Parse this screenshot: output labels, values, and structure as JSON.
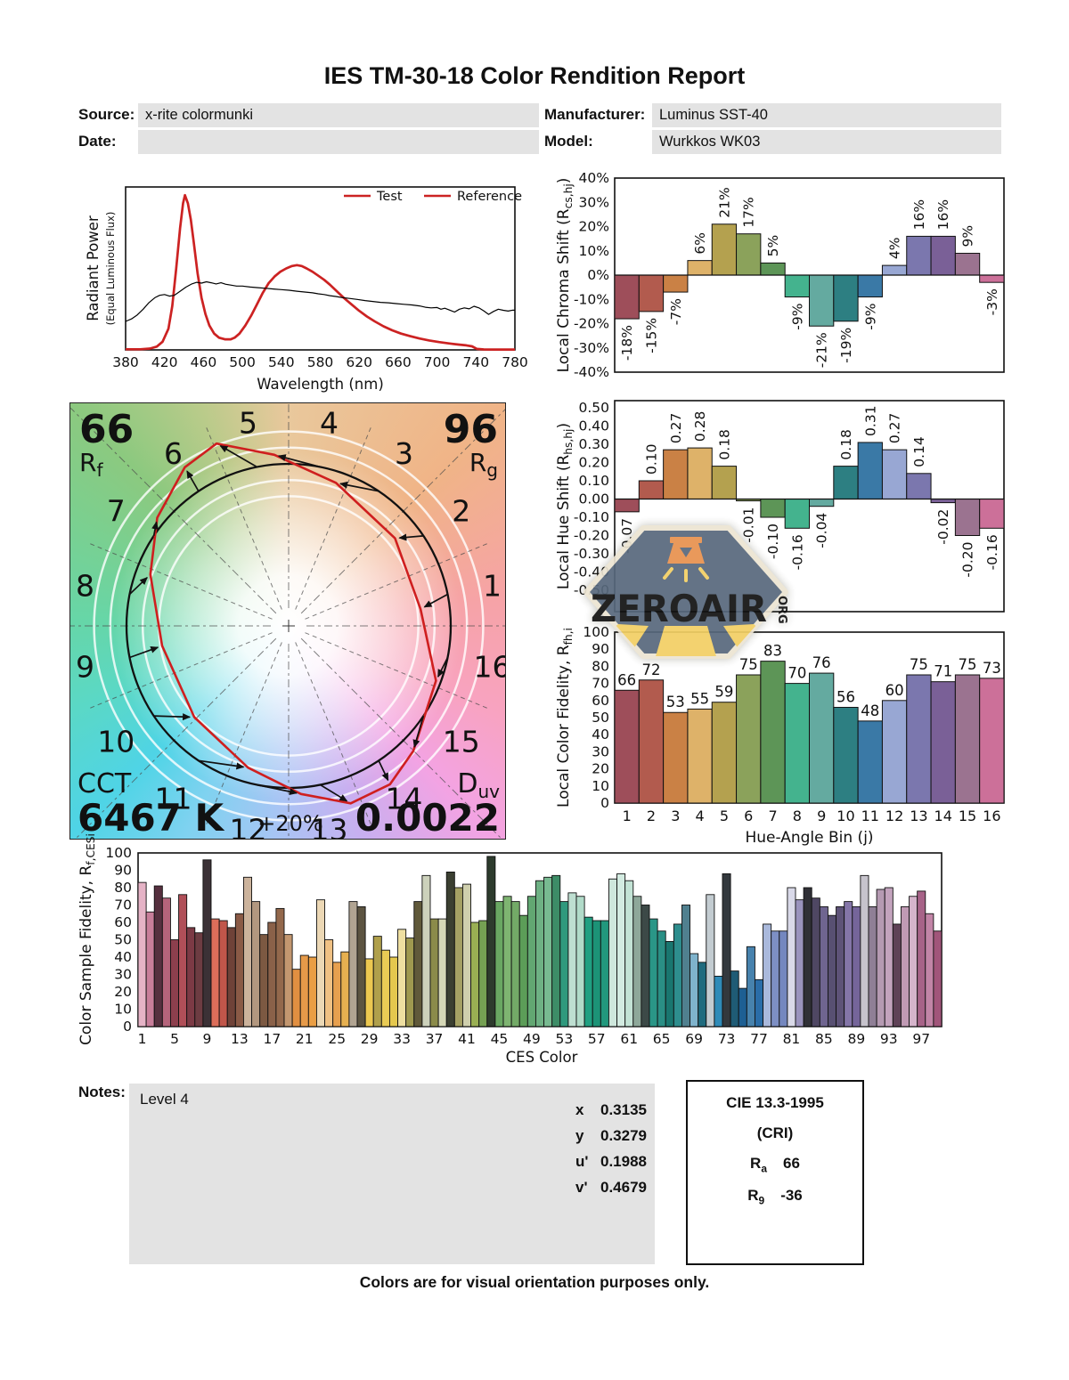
{
  "title": "IES TM-30-18 Color Rendition Report",
  "header": {
    "source_label": "Source:",
    "source_value": "x-rite colormunki",
    "date_label": "Date:",
    "date_value": "",
    "manufacturer_label": "Manufacturer:",
    "manufacturer_value": "Luminus SST-40",
    "model_label": "Model:",
    "model_value": "Wurkkos WK03"
  },
  "legend": {
    "test": "Test",
    "reference": "Reference"
  },
  "axis_labels": {
    "spd_y1": "Radiant Power",
    "spd_y2": "(Equal Luminous Flux)",
    "spd_x": "Wavelength (nm)",
    "fid_x": "Hue-Angle Bin (j)",
    "ces_x": "CES Color"
  },
  "colors": {
    "accent_red": "#cc2222",
    "reference_black": "#000000",
    "box_gray": "#e3e3e3",
    "bin_palette": [
      "#9e4e5a",
      "#b25b4e",
      "#ca8145",
      "#deb269",
      "#b4a14f",
      "#8ba25b",
      "#5d9557",
      "#44b38e",
      "#64aaa0",
      "#2d7f82",
      "#3a79a6",
      "#98a7d3",
      "#7b77ae",
      "#7a6097",
      "#9b7390",
      "#cc7099"
    ],
    "watermark_slate": "#57687c",
    "watermark_orange": "#e8914e",
    "watermark_yellow": "#f2cf63",
    "watermark_cream": "#ece4d2"
  },
  "vector": {
    "rf_value": "66",
    "r_letter": "R",
    "rf_sub": "f",
    "rg_value": "96",
    "rg_sub": "g",
    "cct_label": "CCT",
    "cct_value": "6467 K",
    "duv_letter": "D",
    "duv_sub": "uv",
    "duv_value": "0.0022",
    "ring_label": "+20%"
  },
  "watermark": {
    "text": "ZEROAIR",
    "suffix": "ORG"
  },
  "notes": {
    "label": "Notes:",
    "value": "Level 4"
  },
  "chromaticity": {
    "rows": [
      {
        "label": "x",
        "value": "0.3135"
      },
      {
        "label": "y",
        "value": "0.3279"
      },
      {
        "label": "u'",
        "value": "0.1988"
      },
      {
        "label": "v'",
        "value": "0.4679"
      }
    ]
  },
  "cri": {
    "title": "CIE 13.3-1995",
    "subtitle": "(CRI)",
    "ra_letter": "R",
    "ra_sub": "a",
    "ra_value": "66",
    "r9_letter": "R",
    "r9_sub": "9",
    "r9_value": "-36"
  },
  "footer": "Colors are for visual orientation purposes only.",
  "chart_data": [
    {
      "id": "spd",
      "type": "line",
      "title": "",
      "xlabel": "Wavelength (nm)",
      "ylabel": "Radiant Power",
      "ylabel2": "(Equal Luminous Flux)",
      "xlim": [
        380,
        780
      ],
      "x_ticks": [
        380,
        420,
        460,
        500,
        540,
        580,
        620,
        660,
        700,
        740,
        780
      ],
      "grid": false,
      "legend_position": "top-right",
      "series": [
        {
          "name": "Test",
          "color": "#cc2222",
          "points": [
            [
              380,
              0.004
            ],
            [
              395,
              0.004
            ],
            [
              405,
              0.008
            ],
            [
              412,
              0.02
            ],
            [
              418,
              0.05
            ],
            [
              424,
              0.13
            ],
            [
              428,
              0.27
            ],
            [
              432,
              0.5
            ],
            [
              436,
              0.75
            ],
            [
              439,
              0.9
            ],
            [
              441,
              0.95
            ],
            [
              444,
              0.9
            ],
            [
              447,
              0.8
            ],
            [
              450,
              0.66
            ],
            [
              454,
              0.47
            ],
            [
              458,
              0.32
            ],
            [
              462,
              0.22
            ],
            [
              466,
              0.15
            ],
            [
              471,
              0.1
            ],
            [
              476,
              0.075
            ],
            [
              482,
              0.065
            ],
            [
              488,
              0.065
            ],
            [
              492,
              0.075
            ],
            [
              497,
              0.1
            ],
            [
              503,
              0.15
            ],
            [
              509,
              0.21
            ],
            [
              515,
              0.28
            ],
            [
              521,
              0.35
            ],
            [
              527,
              0.41
            ],
            [
              533,
              0.45
            ],
            [
              539,
              0.48
            ],
            [
              545,
              0.5
            ],
            [
              551,
              0.515
            ],
            [
              556,
              0.52
            ],
            [
              561,
              0.515
            ],
            [
              566,
              0.5
            ],
            [
              572,
              0.48
            ],
            [
              578,
              0.455
            ],
            [
              584,
              0.43
            ],
            [
              590,
              0.4
            ],
            [
              597,
              0.36
            ],
            [
              604,
              0.32
            ],
            [
              612,
              0.28
            ],
            [
              620,
              0.24
            ],
            [
              628,
              0.205
            ],
            [
              636,
              0.175
            ],
            [
              645,
              0.145
            ],
            [
              654,
              0.12
            ],
            [
              663,
              0.1
            ],
            [
              672,
              0.085
            ],
            [
              682,
              0.07
            ],
            [
              692,
              0.058
            ],
            [
              702,
              0.048
            ],
            [
              712,
              0.04
            ],
            [
              722,
              0.033
            ],
            [
              730,
              0.028
            ],
            [
              736,
              0.022
            ],
            [
              741,
              0.006
            ],
            [
              748,
              0.003
            ],
            [
              760,
              0.002
            ],
            [
              780,
              0.002
            ]
          ]
        },
        {
          "name": "Reference",
          "color": "#000000",
          "points": [
            [
              380,
              0.175
            ],
            [
              386,
              0.19
            ],
            [
              392,
              0.215
            ],
            [
              398,
              0.25
            ],
            [
              404,
              0.29
            ],
            [
              410,
              0.32
            ],
            [
              415,
              0.335
            ],
            [
              420,
              0.34
            ],
            [
              425,
              0.33
            ],
            [
              430,
              0.335
            ],
            [
              436,
              0.36
            ],
            [
              442,
              0.385
            ],
            [
              448,
              0.405
            ],
            [
              453,
              0.415
            ],
            [
              458,
              0.41
            ],
            [
              463,
              0.418
            ],
            [
              468,
              0.412
            ],
            [
              473,
              0.405
            ],
            [
              478,
              0.412
            ],
            [
              483,
              0.403
            ],
            [
              488,
              0.398
            ],
            [
              494,
              0.392
            ],
            [
              500,
              0.392
            ],
            [
              508,
              0.386
            ],
            [
              516,
              0.382
            ],
            [
              524,
              0.378
            ],
            [
              532,
              0.374
            ],
            [
              540,
              0.37
            ],
            [
              548,
              0.366
            ],
            [
              556,
              0.36
            ],
            [
              564,
              0.355
            ],
            [
              572,
              0.35
            ],
            [
              578,
              0.344
            ],
            [
              584,
              0.34
            ],
            [
              590,
              0.333
            ],
            [
              596,
              0.328
            ],
            [
              602,
              0.322
            ],
            [
              610,
              0.316
            ],
            [
              618,
              0.31
            ],
            [
              626,
              0.303
            ],
            [
              634,
              0.297
            ],
            [
              642,
              0.292
            ],
            [
              650,
              0.289
            ],
            [
              658,
              0.284
            ],
            [
              666,
              0.28
            ],
            [
              674,
              0.276
            ],
            [
              682,
              0.27
            ],
            [
              688,
              0.262
            ],
            [
              694,
              0.258
            ],
            [
              700,
              0.26
            ],
            [
              704,
              0.25
            ],
            [
              708,
              0.256
            ],
            [
              713,
              0.244
            ],
            [
              718,
              0.232
            ],
            [
              723,
              0.25
            ],
            [
              728,
              0.258
            ],
            [
              733,
              0.252
            ],
            [
              738,
              0.268
            ],
            [
              743,
              0.258
            ],
            [
              748,
              0.24
            ],
            [
              753,
              0.218
            ],
            [
              758,
              0.236
            ],
            [
              763,
              0.25
            ],
            [
              768,
              0.243
            ],
            [
              773,
              0.238
            ],
            [
              778,
              0.244
            ],
            [
              780,
              0.243
            ]
          ]
        }
      ]
    },
    {
      "id": "local_chroma_shift",
      "type": "bar",
      "ylabel": "Local Chroma Shift (Rcs,hj)",
      "ylabel_parts": [
        "Local Chroma Shift (R",
        "cs,hj",
        ")"
      ],
      "ylim": [
        -40,
        40
      ],
      "y_ticks": [
        "40%",
        "30%",
        "20%",
        "10%",
        "0%",
        "-10%",
        "-20%",
        "-30%",
        "-40%"
      ],
      "categories": [
        1,
        2,
        3,
        4,
        5,
        6,
        7,
        8,
        9,
        10,
        11,
        12,
        13,
        14,
        15,
        16
      ],
      "values": [
        -18,
        -15,
        -7,
        6,
        21,
        17,
        5,
        -9,
        -21,
        -19,
        -9,
        4,
        16,
        16,
        9,
        -3
      ],
      "labels": [
        "-18%",
        "-15%",
        "-7%",
        "6%",
        "21%",
        "17%",
        "5%",
        "-9%",
        "-21%",
        "-19%",
        "-9%",
        "4%",
        "16%",
        "16%",
        "9%",
        "-3%"
      ]
    },
    {
      "id": "local_hue_shift",
      "type": "bar",
      "ylabel": "Local Hue Shift (Rhs,hj)",
      "ylabel_parts": [
        "Local Hue Shift (R",
        "hs,hj",
        ")"
      ],
      "ylim": [
        -0.5,
        0.5
      ],
      "y_ticks": [
        "0.50",
        "0.40",
        "0.30",
        "0.20",
        "0.10",
        "0.00",
        "-0.10",
        "-0.20",
        "-0.30",
        "-0.40",
        "-0.50"
      ],
      "categories": [
        1,
        2,
        3,
        4,
        5,
        6,
        7,
        8,
        9,
        10,
        11,
        12,
        13,
        14,
        15,
        16
      ],
      "values": [
        -0.07,
        0.1,
        0.27,
        0.28,
        0.18,
        -0.01,
        -0.1,
        -0.16,
        -0.04,
        0.18,
        0.31,
        0.27,
        0.14,
        -0.02,
        -0.2,
        -0.16
      ],
      "labels": [
        "-0.07",
        "0.10",
        "0.27",
        "0.28",
        "0.18",
        "-0.01",
        "-0.10",
        "-0.16",
        "-0.04",
        "0.18",
        "0.31",
        "0.27",
        "0.14",
        "-0.02",
        "-0.20",
        "-0.16"
      ]
    },
    {
      "id": "local_color_fidelity",
      "type": "bar",
      "xlabel": "Hue-Angle Bin (j)",
      "ylabel": "Local Color Fidelity, Rfh,i",
      "ylabel_parts": [
        "Local Color Fidelity, R",
        "fh,i",
        ""
      ],
      "ylim": [
        0,
        100
      ],
      "y_ticks": [
        "0",
        "10",
        "20",
        "30",
        "40",
        "50",
        "60",
        "70",
        "80",
        "90",
        "100"
      ],
      "categories": [
        1,
        2,
        3,
        4,
        5,
        6,
        7,
        8,
        9,
        10,
        11,
        12,
        13,
        14,
        15,
        16
      ],
      "values": [
        66,
        72,
        53,
        55,
        59,
        75,
        83,
        70,
        76,
        56,
        48,
        60,
        75,
        71,
        75,
        73
      ]
    },
    {
      "id": "color_sample_fidelity",
      "type": "bar",
      "xlabel": "CES Color",
      "ylabel": "Color Sample Fidelity, Rf,CESi",
      "ylabel_parts": [
        "Color Sample Fidelity, R",
        "f,CESi",
        ""
      ],
      "ylim": [
        0,
        100
      ],
      "y_ticks": [
        "0",
        "10",
        "20",
        "30",
        "40",
        "50",
        "60",
        "70",
        "80",
        "90",
        "100"
      ],
      "x_ticks": [
        1,
        5,
        9,
        13,
        17,
        21,
        25,
        29,
        33,
        37,
        41,
        45,
        49,
        53,
        57,
        61,
        65,
        69,
        73,
        77,
        81,
        85,
        89,
        93,
        97
      ],
      "values": [
        83,
        66,
        81,
        74,
        50,
        76,
        57,
        54,
        96,
        62,
        61,
        57,
        65,
        86,
        72,
        53,
        60,
        68,
        53,
        33,
        41,
        40,
        73,
        50,
        37,
        43,
        72,
        69,
        39,
        52,
        44,
        40,
        56,
        51,
        72,
        87,
        62,
        62,
        89,
        80,
        82,
        60,
        61,
        98,
        72,
        75,
        72,
        64,
        75,
        84,
        86,
        87,
        72,
        77,
        75,
        63,
        61,
        61,
        85,
        88,
        84,
        75,
        70,
        62,
        55,
        49,
        59,
        70,
        42,
        37,
        76,
        29,
        88,
        32,
        22,
        46,
        27,
        59,
        55,
        55,
        80,
        73,
        80,
        74,
        69,
        64,
        69,
        72,
        69,
        87,
        69,
        79,
        80,
        59,
        69,
        75,
        78,
        65,
        55
      ],
      "bar_colors": [
        "#e5b3c6",
        "#c87e9a",
        "#56303f",
        "#b5647b",
        "#8d3f4d",
        "#b04f58",
        "#7c3a45",
        "#6d3c42",
        "#3b3136",
        "#dc6e5a",
        "#c1564a",
        "#6f4238",
        "#8a5a46",
        "#ccb39c",
        "#b2977f",
        "#7c5942",
        "#8a6149",
        "#93684c",
        "#c39770",
        "#e18f41",
        "#e69a49",
        "#ea9e44",
        "#ecd8b5",
        "#f0c184",
        "#e7a04f",
        "#e6b050",
        "#b1a492",
        "#5c5441",
        "#ecc850",
        "#b0a04b",
        "#e9cb55",
        "#e5c84e",
        "#eedfa1",
        "#9f994f",
        "#60593a",
        "#ccd1bb",
        "#8b8b4a",
        "#d5d7b6",
        "#3b3f31",
        "#a5a164",
        "#cfcfad",
        "#99af53",
        "#75a153",
        "#2d3b2d",
        "#69a762",
        "#7eb471",
        "#73aa67",
        "#5c9d58",
        "#62a772",
        "#6eb184",
        "#78ba91",
        "#3d8d67",
        "#2f997d",
        "#bedfd1",
        "#b1dbc9",
        "#20a082",
        "#1c9377",
        "#22987d",
        "#cee7dc",
        "#d3ebe1",
        "#c3e3d5",
        "#8ea89a",
        "#3c4947",
        "#2a9687",
        "#2a8f85",
        "#19766f",
        "#2e8e8e",
        "#50808f",
        "#7fb3cc",
        "#1f6b7e",
        "#c3ccd1",
        "#2f8bb8",
        "#33383d",
        "#1f5b75",
        "#1e5f93",
        "#4782ad",
        "#2a6da8",
        "#aab9dc",
        "#7d8fc4",
        "#7487bf",
        "#d9d9e8",
        "#9a93bd",
        "#303036",
        "#4f4763",
        "#6f6590",
        "#585072",
        "#5e5378",
        "#8475a8",
        "#75659a",
        "#c6c3cc",
        "#8f7f96",
        "#b59ab2",
        "#c3a3bd",
        "#5f4257",
        "#c09ab4",
        "#d5b4cb",
        "#a76388",
        "#c285a7",
        "#a1557a"
      ]
    },
    {
      "id": "color_vector",
      "type": "polar",
      "rf": 66,
      "rg": 96,
      "cct_k": 6467,
      "duv": 0.0022,
      "bins": [
        1,
        2,
        3,
        4,
        5,
        6,
        7,
        8,
        9,
        10,
        11,
        12,
        13,
        14,
        15,
        16
      ],
      "chroma_shift_pct": [
        -18,
        -15,
        -7,
        6,
        21,
        17,
        5,
        -9,
        -21,
        -19,
        -9,
        4,
        16,
        16,
        9,
        -3
      ],
      "hue_shift_rad": [
        -0.07,
        0.1,
        0.27,
        0.28,
        0.18,
        -0.01,
        -0.1,
        -0.16,
        -0.04,
        0.18,
        0.31,
        0.27,
        0.14,
        -0.02,
        -0.2,
        -0.16
      ]
    }
  ]
}
